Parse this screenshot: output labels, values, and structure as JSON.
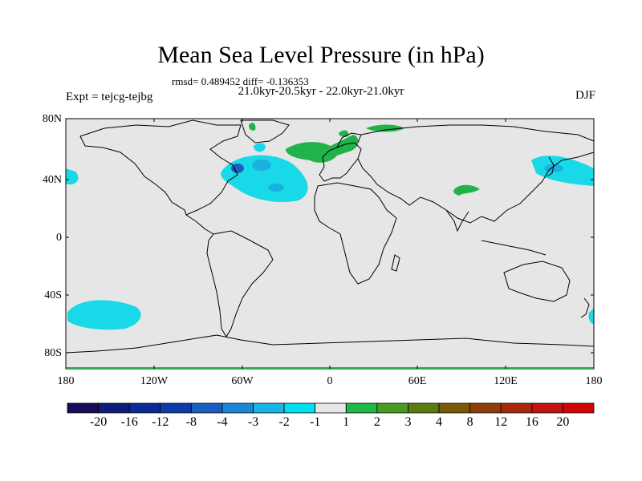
{
  "title": "Mean Sea Level Pressure (in hPa)",
  "stats": "rmsd= 0.489452 diff= -0.136353",
  "period": "21.0kyr-20.5kyr - 22.0kyr-21.0kyr",
  "experiment": "Expt = tejcg-tejbg",
  "season": "DJF",
  "lat_labels": [
    "80N",
    "40N",
    "0",
    "40S",
    "80S"
  ],
  "lon_labels": [
    "180",
    "120W",
    "60W",
    "0",
    "60E",
    "120E",
    "180"
  ],
  "colorbar": {
    "labels": [
      "-20",
      "-16",
      "-12",
      "-8",
      "-4",
      "-3",
      "-2",
      "-1",
      "1",
      "2",
      "3",
      "4",
      "8",
      "12",
      "16",
      "20"
    ],
    "colors": [
      "#1a0a5a",
      "#101c7a",
      "#0c2a94",
      "#0d3caa",
      "#1a5ec0",
      "#1d86d4",
      "#19b4e4",
      "#00e0f0",
      "#e6e6e6",
      "#1fb846",
      "#4a9a24",
      "#5c7a10",
      "#7a5a08",
      "#8e3e08",
      "#a82a0a",
      "#c0140c",
      "#d40404"
    ]
  },
  "map_colors": {
    "background": "#e6e6e6",
    "neg_light": "#19d9e8",
    "neg_mid": "#1ab0e0",
    "neg_dark": "#1a5ec0",
    "pos_light": "#22b24a"
  }
}
